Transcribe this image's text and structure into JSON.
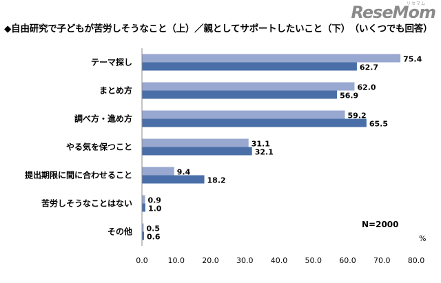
{
  "title": "◆自由研究で子どもが苦労しそうなこと（上）／親としてサポートしたいこと（下）　（いくつでも回答）",
  "logo": {
    "text": "ReseMom",
    "sub": "リセマム"
  },
  "colors": {
    "upper": "#99a8d0",
    "lower": "#4a6fa8",
    "axis": "#888888"
  },
  "chart_data": {
    "type": "bar",
    "orientation": "horizontal",
    "title": "◆自由研究で子どもが苦労しそうなこと（上）／親としてサポートしたいこと（下）　（いくつでも回答）",
    "categories": [
      "テーマ探し",
      "まとめ方",
      "調べ方・進め方",
      "やる気を保つこと",
      "提出期限に間に合わせること",
      "苦労しそうなことはない",
      "その他"
    ],
    "series": [
      {
        "values": [
          75.4,
          62.0,
          59.2,
          31.1,
          9.4,
          0.9,
          0.5
        ],
        "color": "#99a8d0"
      },
      {
        "values": [
          62.7,
          56.9,
          65.5,
          32.1,
          18.2,
          1.0,
          0.6
        ],
        "color": "#4a6fa8"
      }
    ],
    "xlim": [
      0,
      80
    ],
    "xticks": [
      "0.0",
      "10.0",
      "20.0",
      "30.0",
      "40.0",
      "50.0",
      "60.0",
      "70.0",
      "80.0"
    ],
    "unit": "%",
    "annotation": "N=2000",
    "grid": false
  }
}
